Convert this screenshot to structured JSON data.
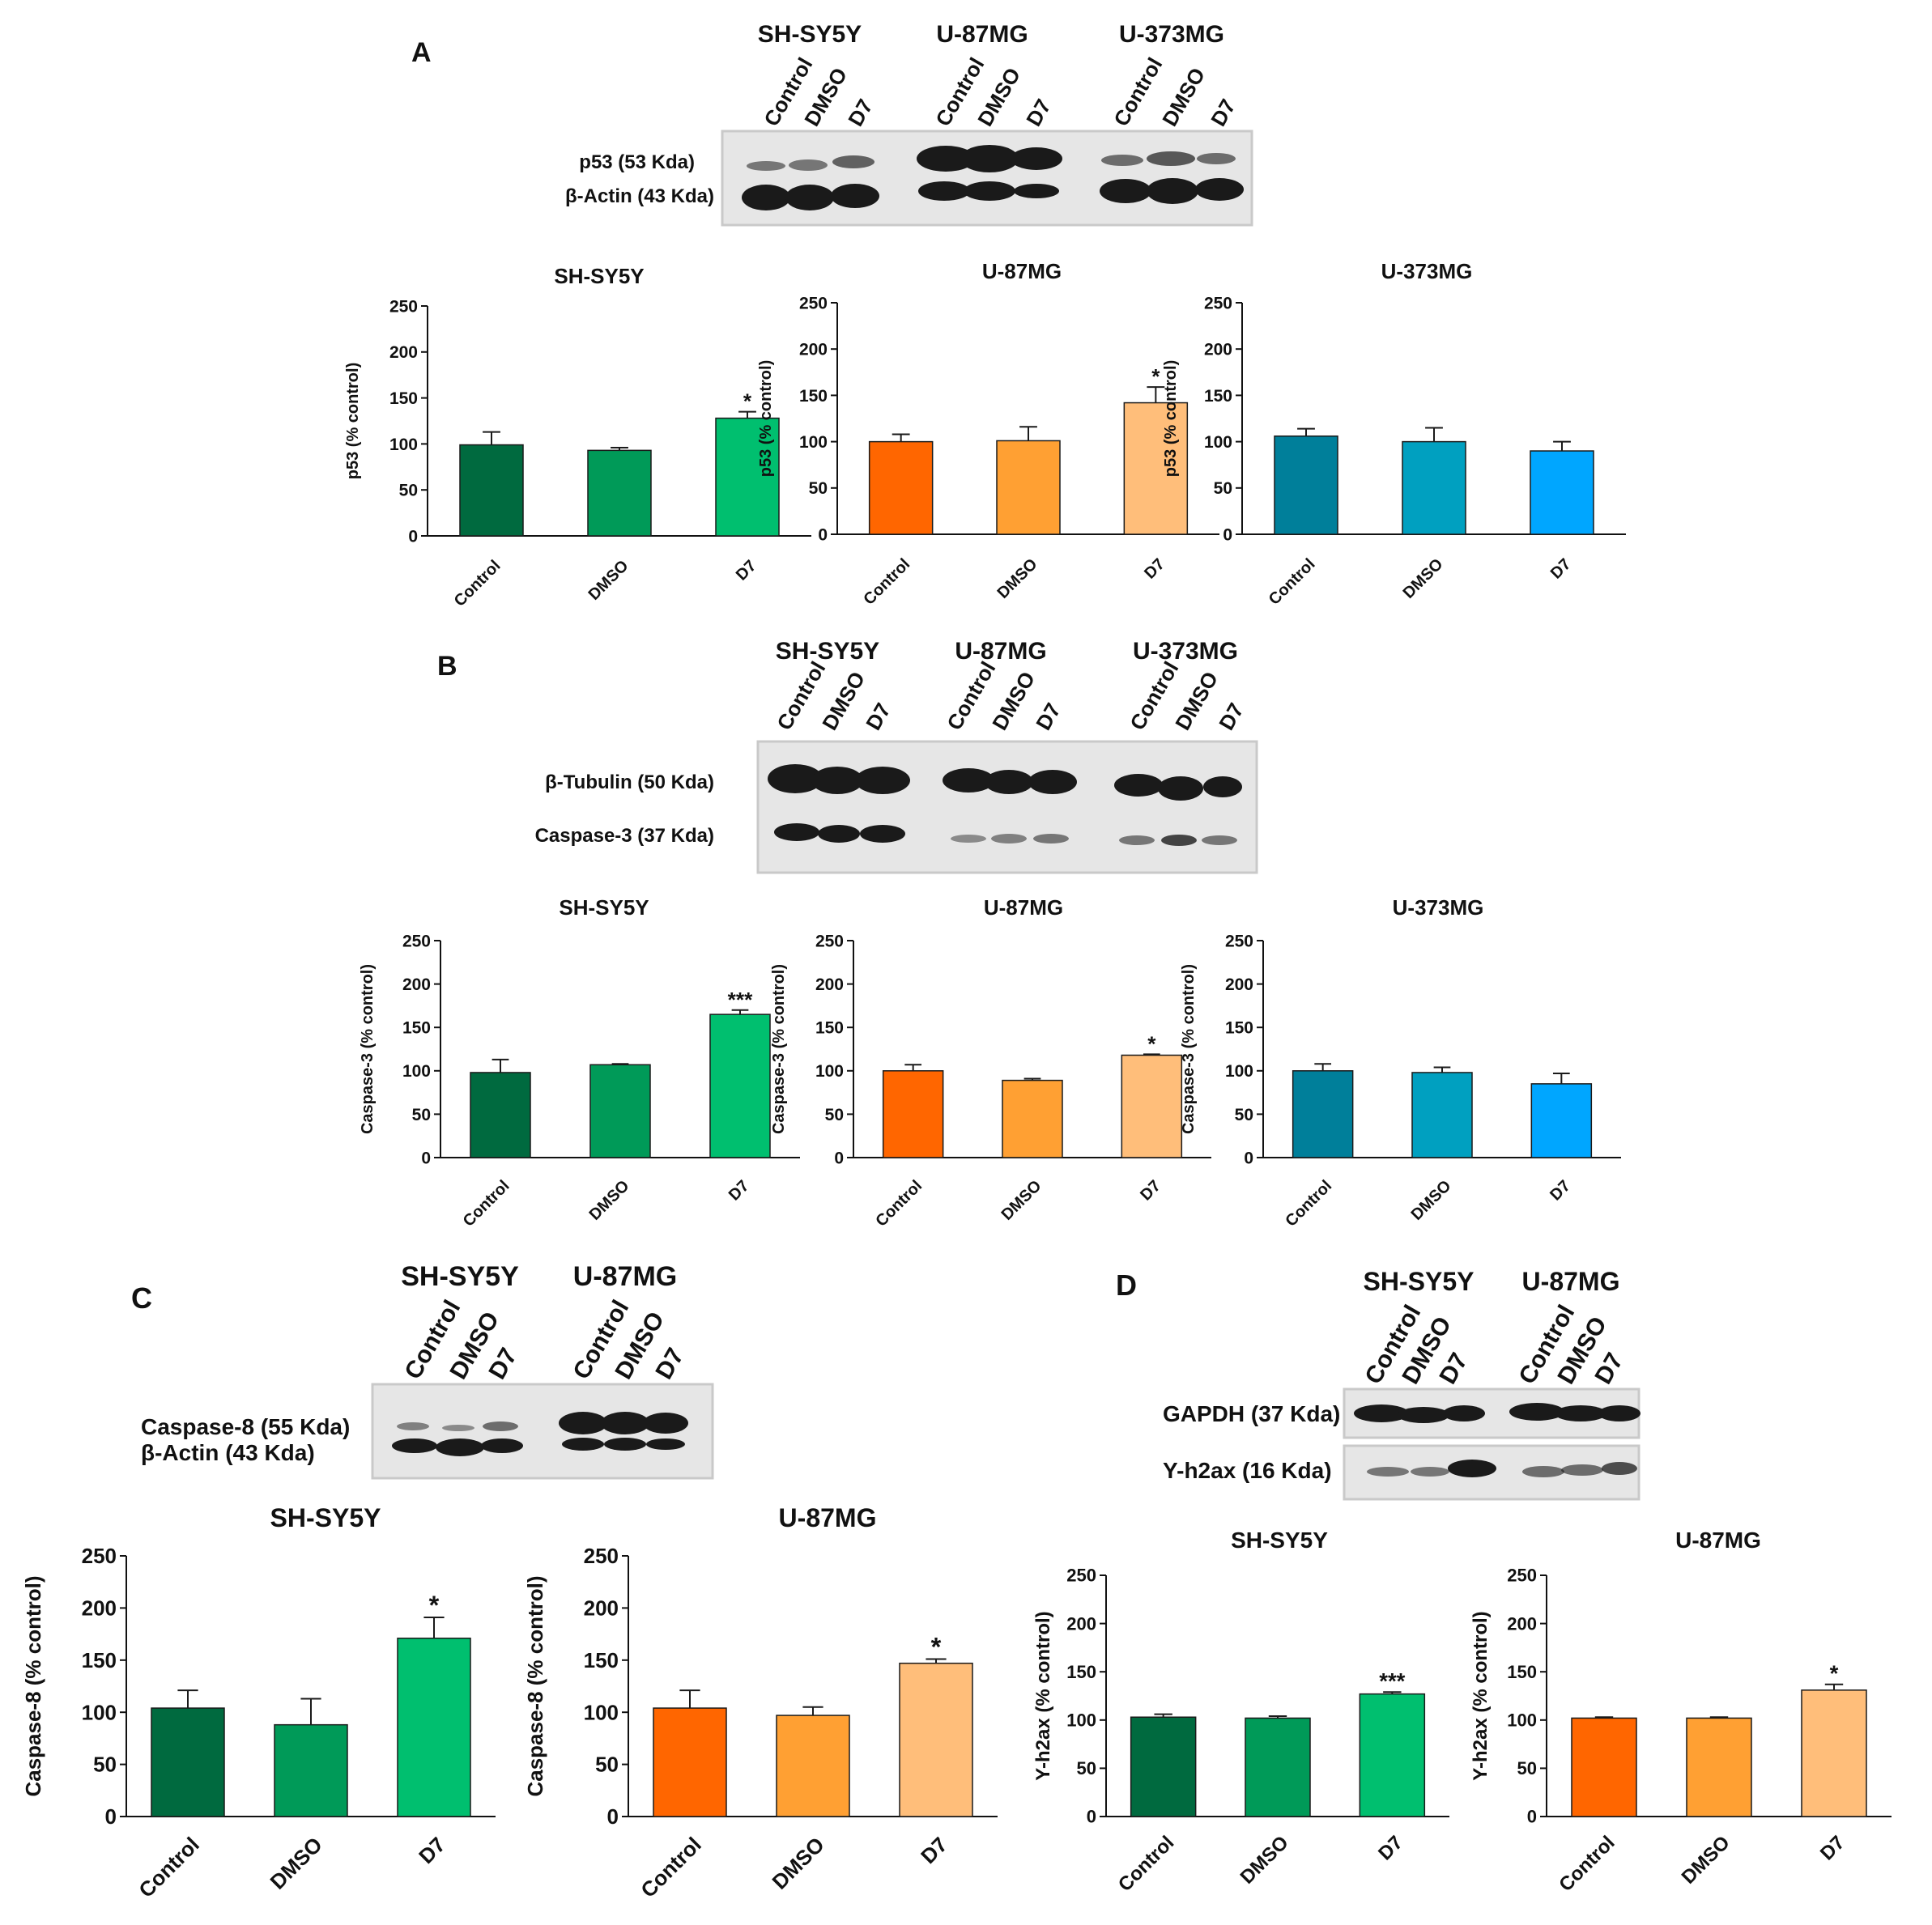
{
  "panel_letters": {
    "a": "A",
    "b": "B",
    "c": "C",
    "d": "D"
  },
  "treatments": [
    "Control",
    "DMSO",
    "D7"
  ],
  "blot_a": {
    "cell_lines": [
      "SH-SY5Y",
      "U-87MG",
      "U-373MG"
    ],
    "band_labels": [
      "p53 (53 Kda)",
      "β-Actin (43 Kda)"
    ]
  },
  "blot_b": {
    "cell_lines": [
      "SH-SY5Y",
      "U-87MG",
      "U-373MG"
    ],
    "band_labels": [
      "β-Tubulin (50 Kda)",
      "Caspase-3 (37 Kda)"
    ]
  },
  "blot_c": {
    "cell_lines": [
      "SH-SY5Y",
      "U-87MG"
    ],
    "band_labels": [
      "Caspase-8 (55 Kda)",
      "β-Actin (43 Kda)"
    ]
  },
  "blot_d": {
    "cell_lines": [
      "SH-SY5Y",
      "U-87MG"
    ],
    "band_labels": [
      "GAPDH (37 Kda)",
      "Y-h2ax (16 Kda)"
    ]
  },
  "colors": {
    "green": [
      "#006a3f",
      "#009a58",
      "#00bf6f"
    ],
    "orange": [
      "#ff6600",
      "#ffa033",
      "#ffbe7a"
    ],
    "blue": [
      "#007f9a",
      "#00a0c0",
      "#00a6ff"
    ]
  },
  "chart_data": [
    {
      "id": "a1",
      "type": "bar",
      "title": "SH-SY5Y",
      "ylabel": "p53 (% control)",
      "categories": [
        "Control",
        "DMSO",
        "D7"
      ],
      "values": [
        99,
        93,
        128
      ],
      "errors": [
        14,
        3,
        7
      ],
      "significance": [
        "",
        "",
        "*"
      ],
      "ylim": [
        0,
        250
      ],
      "yticks": [
        0,
        50,
        100,
        150,
        200,
        250
      ],
      "palette": "green"
    },
    {
      "id": "a2",
      "type": "bar",
      "title": "U-87MG",
      "ylabel": "p53 (% control)",
      "categories": [
        "Control",
        "DMSO",
        "D7"
      ],
      "values": [
        100,
        101,
        142
      ],
      "errors": [
        8,
        15,
        17
      ],
      "significance": [
        "",
        "",
        "*"
      ],
      "ylim": [
        0,
        250
      ],
      "yticks": [
        0,
        50,
        100,
        150,
        200,
        250
      ],
      "palette": "orange"
    },
    {
      "id": "a3",
      "type": "bar",
      "title": "U-373MG",
      "ylabel": "p53 (% control)",
      "categories": [
        "Control",
        "DMSO",
        "D7"
      ],
      "values": [
        106,
        100,
        90
      ],
      "errors": [
        8,
        15,
        10
      ],
      "significance": [
        "",
        "",
        ""
      ],
      "ylim": [
        0,
        250
      ],
      "yticks": [
        0,
        50,
        100,
        150,
        200,
        250
      ],
      "palette": "blue"
    },
    {
      "id": "b1",
      "type": "bar",
      "title": "SH-SY5Y",
      "ylabel": "Caspase-3 (% control)",
      "categories": [
        "Control",
        "DMSO",
        "D7"
      ],
      "values": [
        98,
        107,
        165
      ],
      "errors": [
        15,
        1,
        5
      ],
      "significance": [
        "",
        "",
        "***"
      ],
      "ylim": [
        0,
        250
      ],
      "yticks": [
        0,
        50,
        100,
        150,
        200,
        250
      ],
      "palette": "green"
    },
    {
      "id": "b2",
      "type": "bar",
      "title": "U-87MG",
      "ylabel": "Caspase-3 (% control)",
      "categories": [
        "Control",
        "DMSO",
        "D7"
      ],
      "values": [
        100,
        89,
        118
      ],
      "errors": [
        7,
        2,
        1
      ],
      "significance": [
        "",
        "",
        "*"
      ],
      "ylim": [
        0,
        250
      ],
      "yticks": [
        0,
        50,
        100,
        150,
        200,
        250
      ],
      "palette": "orange"
    },
    {
      "id": "b3",
      "type": "bar",
      "title": "U-373MG",
      "ylabel": "Caspase-3 (% control)",
      "categories": [
        "Control",
        "DMSO",
        "D7"
      ],
      "values": [
        100,
        98,
        85
      ],
      "errors": [
        8,
        6,
        12
      ],
      "significance": [
        "",
        "",
        ""
      ],
      "ylim": [
        0,
        250
      ],
      "yticks": [
        0,
        50,
        100,
        150,
        200,
        250
      ],
      "palette": "blue"
    },
    {
      "id": "c1",
      "type": "bar",
      "title": "SH-SY5Y",
      "ylabel": "Caspase-8 (% control)",
      "categories": [
        "Control",
        "DMSO",
        "D7"
      ],
      "values": [
        104,
        88,
        171
      ],
      "errors": [
        17,
        25,
        20
      ],
      "significance": [
        "",
        "",
        "*"
      ],
      "ylim": [
        0,
        250
      ],
      "yticks": [
        0,
        50,
        100,
        150,
        200,
        250
      ],
      "palette": "green"
    },
    {
      "id": "c2",
      "type": "bar",
      "title": "U-87MG",
      "ylabel": "Caspase-8 (% control)",
      "categories": [
        "Control",
        "DMSO",
        "D7"
      ],
      "values": [
        104,
        97,
        147
      ],
      "errors": [
        17,
        8,
        4
      ],
      "significance": [
        "",
        "",
        "*"
      ],
      "ylim": [
        0,
        250
      ],
      "yticks": [
        0,
        50,
        100,
        150,
        200,
        250
      ],
      "palette": "orange"
    },
    {
      "id": "d1",
      "type": "bar",
      "title": "SH-SY5Y",
      "ylabel": "Y-h2ax (% control)",
      "categories": [
        "Control",
        "DMSO",
        "D7"
      ],
      "values": [
        103,
        102,
        127
      ],
      "errors": [
        3,
        2,
        2
      ],
      "significance": [
        "",
        "",
        "***"
      ],
      "ylim": [
        0,
        250
      ],
      "yticks": [
        0,
        50,
        100,
        150,
        200,
        250
      ],
      "palette": "green"
    },
    {
      "id": "d2",
      "type": "bar",
      "title": "U-87MG",
      "ylabel": "Y-h2ax (% control)",
      "categories": [
        "Control",
        "DMSO",
        "D7"
      ],
      "values": [
        102,
        102,
        131
      ],
      "errors": [
        1,
        1,
        6
      ],
      "significance": [
        "",
        "",
        "*"
      ],
      "ylim": [
        0,
        250
      ],
      "yticks": [
        0,
        50,
        100,
        150,
        200,
        250
      ],
      "palette": "orange"
    }
  ]
}
